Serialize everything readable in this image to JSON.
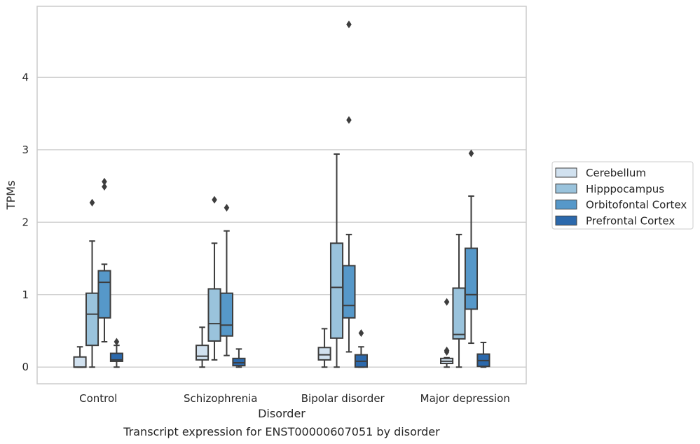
{
  "chart_data": {
    "type": "box",
    "caption": "Transcript expression for ENST00000607051 by disorder",
    "xlabel": "Disorder",
    "ylabel": "TPMs",
    "ylim": [
      -0.23,
      4.98
    ],
    "yticks": [
      0,
      1,
      2,
      3,
      4
    ],
    "grid": "horizontal",
    "legend_position": "right",
    "categories": [
      "Control",
      "Schizophrenia",
      "Bipolar disorder",
      "Major depression"
    ],
    "series": [
      {
        "name": "Cerebellum",
        "color": "#d1e1ef",
        "boxes": [
          {
            "whislo": 0.0,
            "q1": 0.0,
            "med": 0.0,
            "q3": 0.14,
            "whishi": 0.28,
            "fliers": []
          },
          {
            "whislo": 0.0,
            "q1": 0.1,
            "med": 0.15,
            "q3": 0.3,
            "whishi": 0.55,
            "fliers": []
          },
          {
            "whislo": 0.0,
            "q1": 0.1,
            "med": 0.17,
            "q3": 0.27,
            "whishi": 0.53,
            "fliers": []
          },
          {
            "whislo": 0.0,
            "q1": 0.05,
            "med": 0.08,
            "q3": 0.12,
            "whishi": 0.13,
            "fliers": [
              0.21,
              0.23,
              0.9
            ]
          }
        ]
      },
      {
        "name": "Hipppocampus",
        "color": "#9ac3dc",
        "boxes": [
          {
            "whislo": 0.0,
            "q1": 0.3,
            "med": 0.73,
            "q3": 1.02,
            "whishi": 1.74,
            "fliers": [
              2.27
            ]
          },
          {
            "whislo": 0.1,
            "q1": 0.36,
            "med": 0.6,
            "q3": 1.08,
            "whishi": 1.71,
            "fliers": [
              2.31
            ]
          },
          {
            "whislo": 0.0,
            "q1": 0.4,
            "med": 1.1,
            "q3": 1.71,
            "whishi": 2.94,
            "fliers": []
          },
          {
            "whislo": 0.0,
            "q1": 0.39,
            "med": 0.45,
            "q3": 1.09,
            "whishi": 1.83,
            "fliers": []
          }
        ]
      },
      {
        "name": "Orbitofontal Cortex",
        "color": "#5698c9",
        "boxes": [
          {
            "whislo": 0.35,
            "q1": 0.68,
            "med": 1.17,
            "q3": 1.33,
            "whishi": 1.42,
            "fliers": [
              2.49,
              2.56
            ]
          },
          {
            "whislo": 0.16,
            "q1": 0.43,
            "med": 0.58,
            "q3": 1.02,
            "whishi": 1.88,
            "fliers": [
              2.2
            ]
          },
          {
            "whislo": 0.21,
            "q1": 0.68,
            "med": 0.85,
            "q3": 1.4,
            "whishi": 1.83,
            "fliers": [
              3.41,
              4.73
            ]
          },
          {
            "whislo": 0.33,
            "q1": 0.8,
            "med": 1.0,
            "q3": 1.64,
            "whishi": 2.36,
            "fliers": [
              2.95
            ]
          }
        ]
      },
      {
        "name": "Prefrontal Cortex",
        "color": "#2c69ac",
        "boxes": [
          {
            "whislo": 0.0,
            "q1": 0.08,
            "med": 0.1,
            "q3": 0.19,
            "whishi": 0.3,
            "fliers": [
              0.35
            ]
          },
          {
            "whislo": 0.0,
            "q1": 0.02,
            "med": 0.06,
            "q3": 0.12,
            "whishi": 0.25,
            "fliers": []
          },
          {
            "whislo": 0.0,
            "q1": 0.0,
            "med": 0.08,
            "q3": 0.17,
            "whishi": 0.28,
            "fliers": [
              0.47
            ]
          },
          {
            "whislo": 0.0,
            "q1": 0.01,
            "med": 0.09,
            "q3": 0.18,
            "whishi": 0.34,
            "fliers": []
          }
        ]
      }
    ]
  }
}
